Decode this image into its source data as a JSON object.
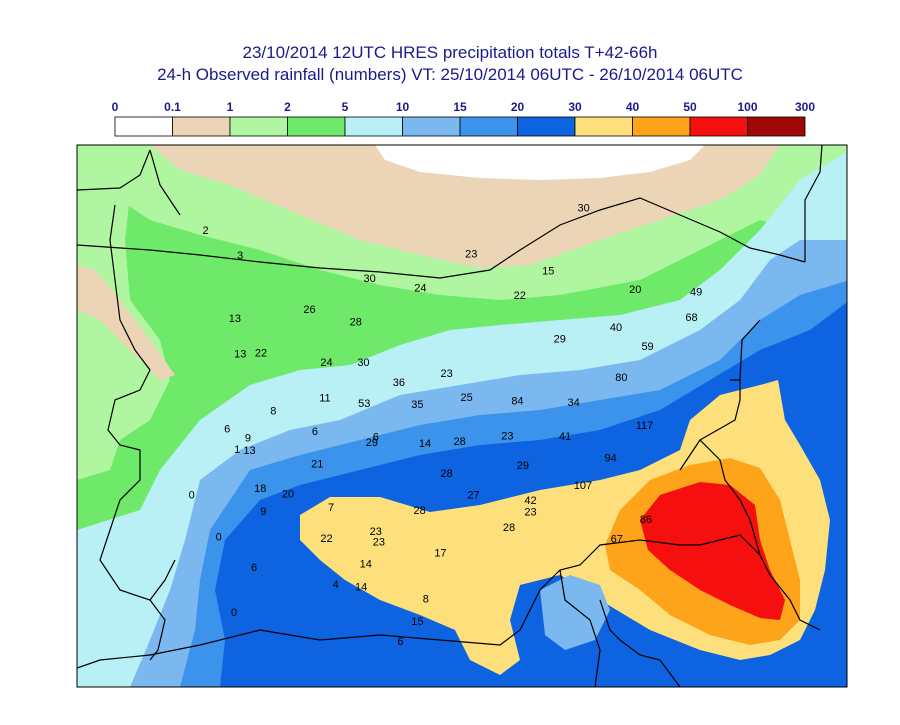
{
  "title": "23/10/2014 12UTC HRES precipitation totals T+42-66h",
  "subtitle": "24-h Observed rainfall (numbers) VT: 25/10/2014 06UTC - 26/10/2014 06UTC",
  "legend": {
    "ticks": [
      "0",
      "0.1",
      "1",
      "2",
      "5",
      "10",
      "15",
      "20",
      "30",
      "40",
      "50",
      "100",
      "300"
    ],
    "colors": [
      "#ffffff",
      "#ecd5b6",
      "#b0f5a0",
      "#6fe96a",
      "#b8f0f5",
      "#7bb8f0",
      "#3c93ec",
      "#0d63e0",
      "#fde07c",
      "#fda41a",
      "#f50f0f",
      "#a00808"
    ]
  },
  "colors": {
    "border": "#000000",
    "title": "#1a1a8c"
  },
  "observations": [
    {
      "v": "30",
      "lon": 0.658,
      "lat": 0.115
    },
    {
      "v": "2",
      "lon": 0.167,
      "lat": 0.157
    },
    {
      "v": "3",
      "lon": 0.212,
      "lat": 0.203
    },
    {
      "v": "23",
      "lon": 0.512,
      "lat": 0.2
    },
    {
      "v": "15",
      "lon": 0.612,
      "lat": 0.232
    },
    {
      "v": "30",
      "lon": 0.38,
      "lat": 0.245
    },
    {
      "v": "24",
      "lon": 0.446,
      "lat": 0.263
    },
    {
      "v": "22",
      "lon": 0.575,
      "lat": 0.277
    },
    {
      "v": "20",
      "lon": 0.725,
      "lat": 0.266
    },
    {
      "v": "49",
      "lon": 0.804,
      "lat": 0.27
    },
    {
      "v": "26",
      "lon": 0.302,
      "lat": 0.303
    },
    {
      "v": "13",
      "lon": 0.205,
      "lat": 0.319
    },
    {
      "v": "28",
      "lon": 0.362,
      "lat": 0.326
    },
    {
      "v": "68",
      "lon": 0.798,
      "lat": 0.317
    },
    {
      "v": "40",
      "lon": 0.7,
      "lat": 0.336
    },
    {
      "v": "29",
      "lon": 0.627,
      "lat": 0.357
    },
    {
      "v": "59",
      "lon": 0.741,
      "lat": 0.371
    },
    {
      "v": "13",
      "lon": 0.212,
      "lat": 0.385
    },
    {
      "v": "22",
      "lon": 0.239,
      "lat": 0.383
    },
    {
      "v": "24",
      "lon": 0.324,
      "lat": 0.4
    },
    {
      "v": "30",
      "lon": 0.372,
      "lat": 0.4
    },
    {
      "v": "23",
      "lon": 0.48,
      "lat": 0.421
    },
    {
      "v": "80",
      "lon": 0.707,
      "lat": 0.428
    },
    {
      "v": "36",
      "lon": 0.418,
      "lat": 0.437
    },
    {
      "v": "11",
      "lon": 0.322,
      "lat": 0.466
    },
    {
      "v": "53",
      "lon": 0.373,
      "lat": 0.476
    },
    {
      "v": "35",
      "lon": 0.442,
      "lat": 0.478
    },
    {
      "v": "25",
      "lon": 0.506,
      "lat": 0.465
    },
    {
      "v": "84",
      "lon": 0.572,
      "lat": 0.471
    },
    {
      "v": "34",
      "lon": 0.645,
      "lat": 0.474
    },
    {
      "v": "8",
      "lon": 0.255,
      "lat": 0.49
    },
    {
      "v": "117",
      "lon": 0.737,
      "lat": 0.517
    },
    {
      "v": "6",
      "lon": 0.195,
      "lat": 0.523
    },
    {
      "v": "6",
      "lon": 0.309,
      "lat": 0.528
    },
    {
      "v": "9",
      "lon": 0.222,
      "lat": 0.54
    },
    {
      "v": "29",
      "lon": 0.383,
      "lat": 0.548
    },
    {
      "v": "6",
      "lon": 0.388,
      "lat": 0.538
    },
    {
      "v": "14",
      "lon": 0.452,
      "lat": 0.55
    },
    {
      "v": "28",
      "lon": 0.497,
      "lat": 0.546
    },
    {
      "v": "23",
      "lon": 0.559,
      "lat": 0.536
    },
    {
      "v": "41",
      "lon": 0.634,
      "lat": 0.537
    },
    {
      "v": "1",
      "lon": 0.208,
      "lat": 0.561
    },
    {
      "v": "13",
      "lon": 0.224,
      "lat": 0.563
    },
    {
      "v": "94",
      "lon": 0.693,
      "lat": 0.577
    },
    {
      "v": "21",
      "lon": 0.312,
      "lat": 0.588
    },
    {
      "v": "29",
      "lon": 0.579,
      "lat": 0.59
    },
    {
      "v": "28",
      "lon": 0.48,
      "lat": 0.605
    },
    {
      "v": "107",
      "lon": 0.657,
      "lat": 0.627
    },
    {
      "v": "18",
      "lon": 0.238,
      "lat": 0.633
    },
    {
      "v": "20",
      "lon": 0.274,
      "lat": 0.643
    },
    {
      "v": "27",
      "lon": 0.515,
      "lat": 0.645
    },
    {
      "v": "0",
      "lon": 0.149,
      "lat": 0.645
    },
    {
      "v": "42",
      "lon": 0.589,
      "lat": 0.655
    },
    {
      "v": "7",
      "lon": 0.33,
      "lat": 0.668
    },
    {
      "v": "9",
      "lon": 0.242,
      "lat": 0.675
    },
    {
      "v": "28",
      "lon": 0.445,
      "lat": 0.673
    },
    {
      "v": "23",
      "lon": 0.589,
      "lat": 0.676
    },
    {
      "v": "86",
      "lon": 0.739,
      "lat": 0.69
    },
    {
      "v": "28",
      "lon": 0.561,
      "lat": 0.705
    },
    {
      "v": "0",
      "lon": 0.184,
      "lat": 0.722
    },
    {
      "v": "22",
      "lon": 0.324,
      "lat": 0.725
    },
    {
      "v": "23",
      "lon": 0.388,
      "lat": 0.712
    },
    {
      "v": "23",
      "lon": 0.392,
      "lat": 0.732
    },
    {
      "v": "67",
      "lon": 0.701,
      "lat": 0.726
    },
    {
      "v": "17",
      "lon": 0.472,
      "lat": 0.752
    },
    {
      "v": "14",
      "lon": 0.375,
      "lat": 0.772
    },
    {
      "v": "6",
      "lon": 0.23,
      "lat": 0.779
    },
    {
      "v": "4",
      "lon": 0.336,
      "lat": 0.81
    },
    {
      "v": "14",
      "lon": 0.369,
      "lat": 0.815
    },
    {
      "v": "8",
      "lon": 0.453,
      "lat": 0.837
    },
    {
      "v": "0",
      "lon": 0.204,
      "lat": 0.862
    },
    {
      "v": "15",
      "lon": 0.442,
      "lat": 0.878
    },
    {
      "v": "6",
      "lon": 0.42,
      "lat": 0.915
    }
  ]
}
